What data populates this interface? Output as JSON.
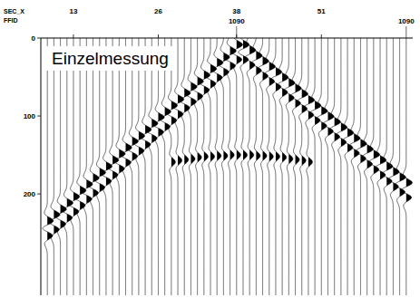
{
  "chart_data": {
    "type": "wiggle",
    "title": "Einzelmessung",
    "xlabel": "SEC_X",
    "x2label": "FFID",
    "x": [
      9,
      10,
      11,
      12,
      13,
      14,
      15,
      16,
      17,
      18,
      19,
      20,
      21,
      22,
      23,
      24,
      25,
      26,
      27,
      28,
      29,
      30,
      31,
      32,
      33,
      34,
      35,
      36,
      37,
      38,
      39,
      40,
      41,
      42,
      43,
      44,
      45,
      46,
      47,
      48,
      49,
      50,
      51,
      52,
      53,
      54,
      55,
      56,
      57,
      58,
      59,
      60,
      61,
      62,
      63,
      64
    ],
    "series": [
      {
        "values": [
          235,
          227,
          220,
          212,
          204,
          196,
          188,
          180,
          173,
          165,
          157,
          149,
          141,
          133,
          126,
          118,
          110,
          102,
          95,
          87,
          79,
          71,
          63,
          56,
          48,
          40,
          32,
          25,
          17,
          9,
          9,
          16,
          23,
          30,
          37,
          44,
          51,
          58,
          65,
          72,
          80,
          87,
          94,
          101,
          108,
          115,
          122,
          129,
          136,
          143,
          150,
          157,
          165,
          172,
          179,
          186
        ]
      },
      {
        "values": [
          253,
          245,
          238,
          230,
          222,
          214,
          206,
          198,
          191,
          183,
          175,
          167,
          159,
          151,
          144,
          136,
          128,
          120,
          113,
          105,
          97,
          89,
          81,
          74,
          66,
          58,
          50,
          43,
          35,
          27,
          27,
          34,
          41,
          48,
          55,
          62,
          69,
          76,
          83,
          90,
          98,
          105,
          112,
          119,
          126,
          133,
          140,
          147,
          154,
          161,
          168,
          175,
          183,
          190,
          197,
          204
        ]
      },
      {
        "values": [
          null,
          null,
          null,
          null,
          null,
          null,
          null,
          null,
          null,
          null,
          null,
          null,
          null,
          null,
          null,
          null,
          null,
          null,
          null,
          159,
          157,
          156,
          155,
          153,
          152,
          152,
          151,
          151,
          150,
          150,
          150,
          150,
          151,
          151,
          152,
          152,
          153,
          155,
          156,
          157,
          159,
          null,
          null,
          null,
          null,
          null,
          null,
          null,
          null,
          null,
          null,
          null,
          null,
          null,
          null,
          null
        ]
      }
    ],
    "xlim": [
      8,
      65
    ],
    "xticks": [
      13,
      26,
      38,
      51
    ],
    "x2ticks": [
      {
        "value": 38,
        "label": "1090"
      },
      {
        "value": 64,
        "label": "1090"
      }
    ],
    "ylim": [
      0,
      330
    ],
    "yticks": [
      0,
      100,
      200
    ]
  }
}
